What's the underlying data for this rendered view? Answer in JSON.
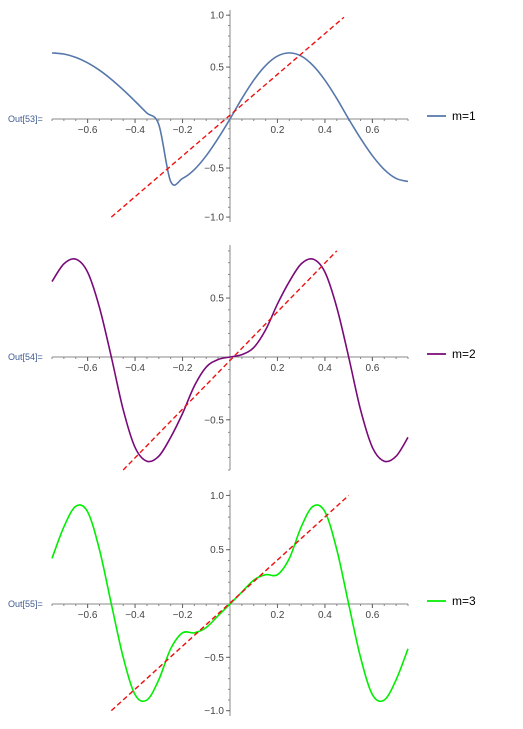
{
  "chart_data": [
    {
      "type": "line",
      "out_label": "Out[53]=",
      "legend": "m=1",
      "color": "#5577aa",
      "xlim": [
        -0.75,
        0.75
      ],
      "ylim": [
        -1.05,
        1.05
      ],
      "x_ticks": [
        -0.6,
        -0.4,
        -0.2,
        0.2,
        0.4,
        0.6
      ],
      "x_tick_labels": [
        "-0.6",
        "-0.4",
        "-0.2",
        "0.2",
        "0.4",
        "0.6"
      ],
      "y_ticks": [
        -1.0,
        -0.5,
        0.5,
        1.0
      ],
      "y_tick_labels": [
        "-1.0",
        "-0.5",
        "0.5",
        "1.0"
      ],
      "series": [
        {
          "name": "m=1",
          "style": "solid",
          "color": "#5577aa",
          "x": [
            -0.75,
            -0.7,
            -0.65,
            -0.6,
            -0.55,
            -0.5,
            -0.45,
            -0.4,
            -0.35,
            -0.3,
            -0.25,
            -0.2,
            -0.15,
            -0.1,
            -0.05,
            0,
            0.05,
            0.1,
            0.15,
            0.2,
            0.25,
            0.3,
            0.35,
            0.4,
            0.45,
            0.5,
            0.55,
            0.6,
            0.65,
            0.7,
            0.75
          ],
          "y": [
            0.637,
            0.626,
            0.594,
            0.541,
            0.47,
            0.382,
            0.281,
            0.171,
            0.057,
            -0.057,
            -0.637,
            -0.606,
            -0.515,
            -0.374,
            -0.197,
            0,
            0.197,
            0.374,
            0.515,
            0.606,
            0.637,
            0.606,
            0.515,
            0.374,
            0.197,
            0,
            -0.197,
            -0.374,
            -0.515,
            -0.606,
            -0.637
          ]
        },
        {
          "name": "",
          "style": "dashed",
          "color": "#ee1111",
          "x": [
            -0.5,
            0.48
          ],
          "y": [
            -1.0,
            0.98
          ]
        }
      ]
    },
    {
      "type": "line",
      "out_label": "Out[54]=",
      "legend": "m=2",
      "color": "#7a0a7a",
      "xlim": [
        -0.75,
        0.75
      ],
      "ylim": [
        -0.9,
        0.95
      ],
      "x_ticks": [
        -0.6,
        -0.4,
        -0.2,
        0.2,
        0.4,
        0.6
      ],
      "x_tick_labels": [
        "-0.6",
        "-0.4",
        "-0.2",
        "0.2",
        "0.4",
        "0.6"
      ],
      "y_ticks": [
        -0.5,
        0.5
      ],
      "y_tick_labels": [
        "-0.5",
        "0.5"
      ],
      "series": [
        {
          "name": "m=2",
          "style": "solid",
          "color": "#7a0a7a",
          "x": [
            -0.75,
            -0.7,
            -0.65,
            -0.6,
            -0.55,
            -0.5,
            -0.45,
            -0.4,
            -0.35,
            -0.3,
            -0.25,
            -0.2,
            -0.15,
            -0.1,
            -0.05,
            0,
            0.05,
            0.1,
            0.15,
            0.2,
            0.25,
            0.3,
            0.35,
            0.4,
            0.45,
            0.5,
            0.55,
            0.6,
            0.65,
            0.7,
            0.75
          ],
          "y": [
            0.64,
            0.79,
            0.83,
            0.72,
            0.42,
            0.0,
            -0.42,
            -0.72,
            -0.83,
            -0.79,
            -0.64,
            -0.45,
            -0.23,
            -0.08,
            -0.02,
            0.0,
            0.02,
            0.08,
            0.23,
            0.45,
            0.64,
            0.79,
            0.83,
            0.72,
            0.42,
            0.0,
            -0.42,
            -0.72,
            -0.83,
            -0.79,
            -0.64
          ]
        },
        {
          "name": "",
          "style": "dashed",
          "color": "#ee1111",
          "x": [
            -0.45,
            0.45
          ],
          "y": [
            -0.9,
            0.9
          ]
        }
      ]
    },
    {
      "type": "line",
      "out_label": "Out[55]=",
      "legend": "m=3",
      "color": "#00ee00",
      "xlim": [
        -0.75,
        0.75
      ],
      "ylim": [
        -1.05,
        1.05
      ],
      "x_ticks": [
        -0.6,
        -0.4,
        -0.2,
        0.2,
        0.4,
        0.6
      ],
      "x_tick_labels": [
        "-0.6",
        "-0.4",
        "-0.2",
        "0.2",
        "0.4",
        "0.6"
      ],
      "y_ticks": [
        -1.0,
        -0.5,
        0.5,
        1.0
      ],
      "y_tick_labels": [
        "-1.0",
        "-0.5",
        "0.5",
        "1.0"
      ],
      "series": [
        {
          "name": "m=3",
          "style": "solid",
          "color": "#00ee00",
          "x": [
            -0.75,
            -0.7,
            -0.65,
            -0.6,
            -0.55,
            -0.5,
            -0.45,
            -0.4,
            -0.35,
            -0.3,
            -0.25,
            -0.2,
            -0.15,
            -0.1,
            -0.05,
            0,
            0.05,
            0.1,
            0.15,
            0.2,
            0.25,
            0.3,
            0.35,
            0.4,
            0.45,
            0.5,
            0.55,
            0.6,
            0.65,
            0.7,
            0.75
          ],
          "y": [
            0.42,
            0.71,
            0.9,
            0.85,
            0.5,
            0.0,
            -0.5,
            -0.85,
            -0.9,
            -0.71,
            -0.42,
            -0.27,
            -0.27,
            -0.22,
            -0.11,
            0.0,
            0.11,
            0.22,
            0.27,
            0.27,
            0.42,
            0.71,
            0.9,
            0.85,
            0.5,
            0.0,
            -0.5,
            -0.85,
            -0.9,
            -0.71,
            -0.42
          ]
        },
        {
          "name": "",
          "style": "dashed",
          "color": "#ee1111",
          "x": [
            -0.5,
            0.5
          ],
          "y": [
            -1.0,
            1.0
          ]
        }
      ]
    }
  ]
}
